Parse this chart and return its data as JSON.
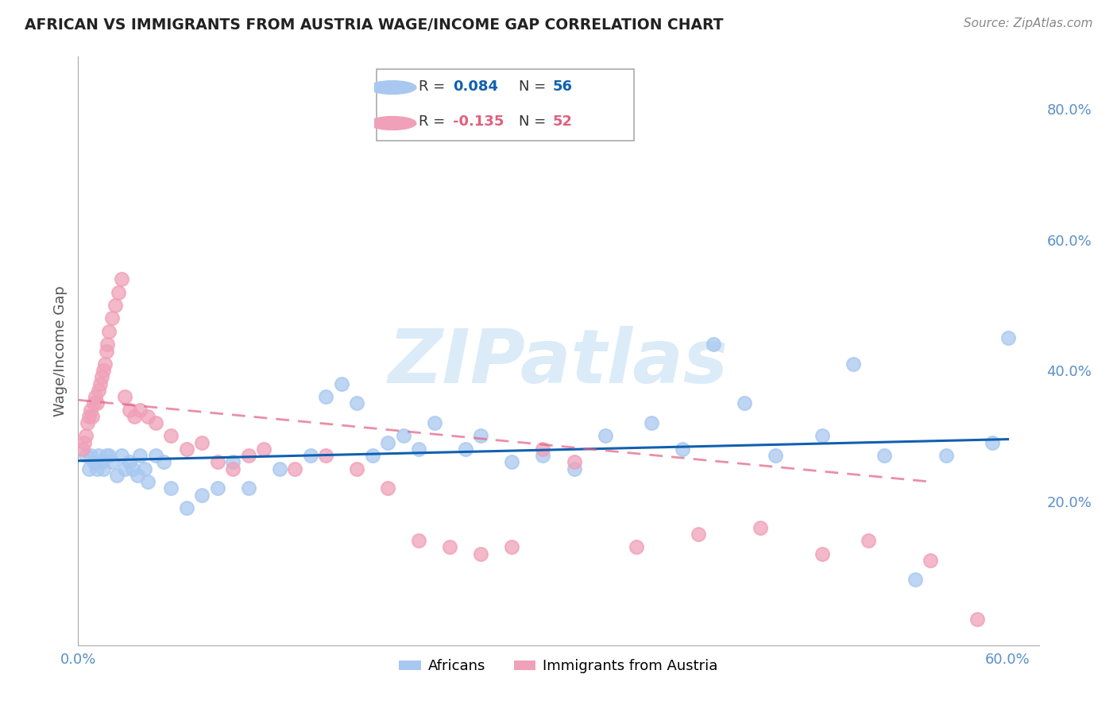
{
  "title": "AFRICAN VS IMMIGRANTS FROM AUSTRIA WAGE/INCOME GAP CORRELATION CHART",
  "source": "Source: ZipAtlas.com",
  "ylabel": "Wage/Income Gap",
  "xlim": [
    0.0,
    0.62
  ],
  "ylim": [
    -0.02,
    0.88
  ],
  "x_ticks": [
    0.0,
    0.1,
    0.2,
    0.3,
    0.4,
    0.5,
    0.6
  ],
  "x_tick_labels": [
    "0.0%",
    "",
    "",
    "",
    "",
    "",
    "60.0%"
  ],
  "y_ticks_right": [
    0.2,
    0.4,
    0.6,
    0.8
  ],
  "y_tick_labels_right": [
    "20.0%",
    "40.0%",
    "60.0%",
    "80.0%"
  ],
  "africans_R": 0.084,
  "africans_N": 56,
  "austria_R": -0.135,
  "austria_N": 52,
  "africans_color": "#a8c8f0",
  "austria_color": "#f0a0b8",
  "africans_line_color": "#1060b0",
  "austria_line_color": "#e06080",
  "watermark": "ZIPatlas",
  "africans_x": [
    0.005,
    0.007,
    0.008,
    0.01,
    0.012,
    0.013,
    0.015,
    0.016,
    0.018,
    0.02,
    0.022,
    0.025,
    0.028,
    0.03,
    0.033,
    0.035,
    0.038,
    0.04,
    0.043,
    0.045,
    0.05,
    0.055,
    0.06,
    0.07,
    0.08,
    0.09,
    0.1,
    0.11,
    0.13,
    0.15,
    0.16,
    0.17,
    0.18,
    0.19,
    0.2,
    0.21,
    0.22,
    0.23,
    0.25,
    0.26,
    0.28,
    0.3,
    0.32,
    0.34,
    0.37,
    0.39,
    0.41,
    0.43,
    0.45,
    0.48,
    0.5,
    0.52,
    0.54,
    0.56,
    0.59,
    0.6
  ],
  "africans_y": [
    0.27,
    0.25,
    0.27,
    0.26,
    0.25,
    0.27,
    0.26,
    0.25,
    0.27,
    0.27,
    0.26,
    0.24,
    0.27,
    0.25,
    0.26,
    0.25,
    0.24,
    0.27,
    0.25,
    0.23,
    0.27,
    0.26,
    0.22,
    0.19,
    0.21,
    0.22,
    0.26,
    0.22,
    0.25,
    0.27,
    0.36,
    0.38,
    0.35,
    0.27,
    0.29,
    0.3,
    0.28,
    0.32,
    0.28,
    0.3,
    0.26,
    0.27,
    0.25,
    0.3,
    0.32,
    0.28,
    0.44,
    0.35,
    0.27,
    0.3,
    0.41,
    0.27,
    0.08,
    0.27,
    0.29,
    0.45
  ],
  "austria_x": [
    0.003,
    0.004,
    0.005,
    0.006,
    0.007,
    0.008,
    0.009,
    0.01,
    0.011,
    0.012,
    0.013,
    0.014,
    0.015,
    0.016,
    0.017,
    0.018,
    0.019,
    0.02,
    0.022,
    0.024,
    0.026,
    0.028,
    0.03,
    0.033,
    0.036,
    0.04,
    0.045,
    0.05,
    0.06,
    0.07,
    0.08,
    0.09,
    0.1,
    0.11,
    0.12,
    0.14,
    0.16,
    0.18,
    0.2,
    0.22,
    0.24,
    0.26,
    0.28,
    0.3,
    0.32,
    0.36,
    0.4,
    0.44,
    0.48,
    0.51,
    0.55,
    0.58
  ],
  "austria_y": [
    0.28,
    0.29,
    0.3,
    0.32,
    0.33,
    0.34,
    0.33,
    0.35,
    0.36,
    0.35,
    0.37,
    0.38,
    0.39,
    0.4,
    0.41,
    0.43,
    0.44,
    0.46,
    0.48,
    0.5,
    0.52,
    0.54,
    0.36,
    0.34,
    0.33,
    0.34,
    0.33,
    0.32,
    0.3,
    0.28,
    0.29,
    0.26,
    0.25,
    0.27,
    0.28,
    0.25,
    0.27,
    0.25,
    0.22,
    0.14,
    0.13,
    0.12,
    0.13,
    0.28,
    0.26,
    0.13,
    0.15,
    0.16,
    0.12,
    0.14,
    0.11,
    0.02
  ],
  "africans_line_start_x": 0.0,
  "africans_line_start_y": 0.262,
  "africans_line_end_x": 0.6,
  "africans_line_end_y": 0.295,
  "austria_line_start_x": 0.0,
  "austria_line_start_y": 0.355,
  "austria_line_end_x": 0.55,
  "austria_line_end_y": 0.23
}
